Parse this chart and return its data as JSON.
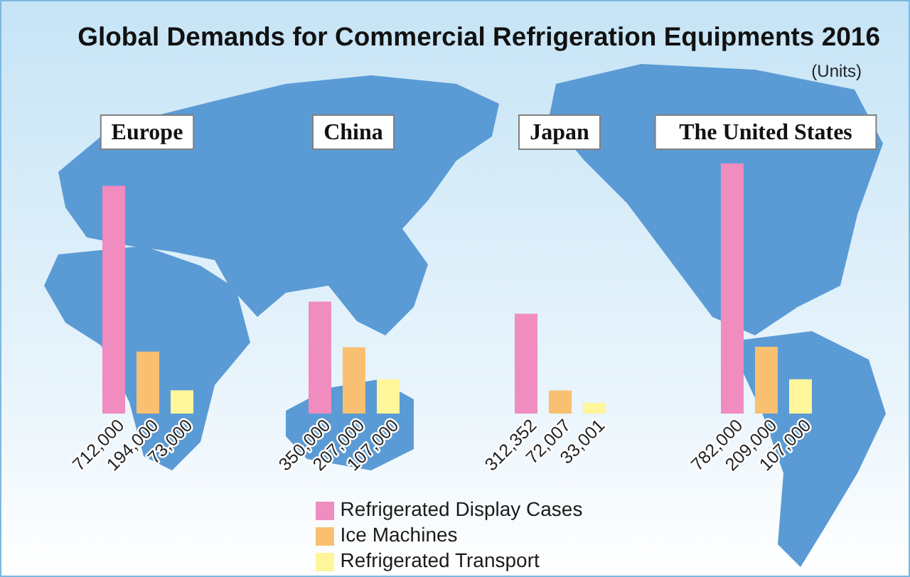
{
  "chart_data": {
    "type": "bar",
    "title": "Global Demands for Commercial Refrigeration Equipments 2016",
    "annotations": [
      "(Units)"
    ],
    "categories": [
      "Europe",
      "China",
      "Japan",
      "The United States"
    ],
    "series": [
      {
        "name": "Refrigerated Display Cases",
        "color": "#f08cc0",
        "values": [
          712000,
          350000,
          312352,
          782000
        ],
        "value_labels": [
          "712,000",
          "350,000",
          "312,352",
          "782,000"
        ]
      },
      {
        "name": "Ice Machines",
        "color": "#f8c070",
        "values": [
          194000,
          207000,
          72007,
          209000
        ],
        "value_labels": [
          "194,000",
          "207,000",
          "72,007",
          "209,000"
        ]
      },
      {
        "name": "Refrigerated Transport",
        "color": "#fff59a",
        "values": [
          73000,
          107000,
          33001,
          107000
        ],
        "value_labels": [
          "73,000",
          "107,000",
          "33,001",
          "107,000"
        ]
      }
    ],
    "legend": "bottom",
    "tick_labels": "x"
  }
}
